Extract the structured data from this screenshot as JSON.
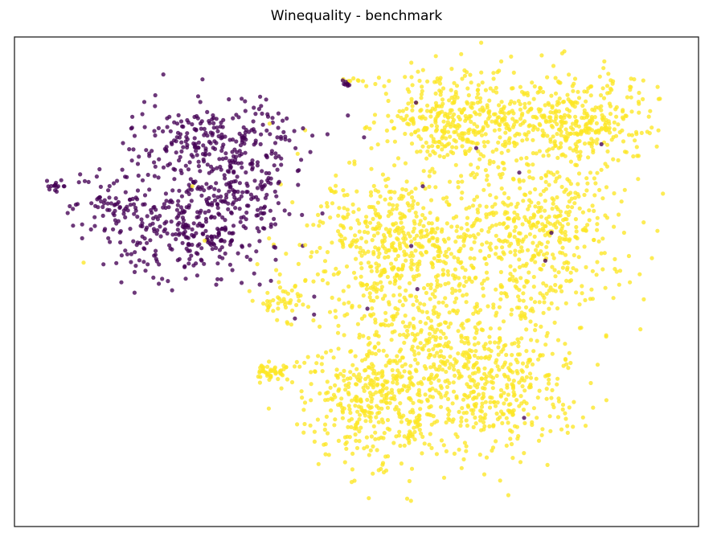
{
  "chart_data": {
    "type": "scatter",
    "title": "Winequality - benchmark",
    "xlabel": "",
    "ylabel": "",
    "xlim": [
      0,
      100
    ],
    "ylim": [
      0,
      100
    ],
    "grid": false,
    "legend": "none",
    "axes_ticks": "hidden",
    "series": [
      {
        "color": "#440154",
        "clusters": [
          {
            "center": [
              29,
              79
            ],
            "spread": [
              7,
              4
            ],
            "count": 260
          },
          {
            "center": [
              25,
              61
            ],
            "spread": [
              7,
              5
            ],
            "count": 330
          },
          {
            "center": [
              14,
              67
            ],
            "spread": [
              3,
              3
            ],
            "count": 50
          },
          {
            "center": [
              33,
              69
            ],
            "spread": [
              4,
              4
            ],
            "count": 110
          },
          {
            "center": [
              6,
              69.5
            ],
            "spread": [
              0.8,
              0.6
            ],
            "count": 16
          },
          {
            "center": [
              48.7,
              90.5
            ],
            "spread": [
              0.4,
              0.4
            ],
            "count": 8
          }
        ],
        "points": [
          [
            58.7,
            86.6
          ],
          [
            51.1,
            79.5
          ],
          [
            67.5,
            77.3
          ],
          [
            59.7,
            69.5
          ],
          [
            73.8,
            72.3
          ],
          [
            58.0,
            57.3
          ],
          [
            77.6,
            54.3
          ],
          [
            58.9,
            48.5
          ],
          [
            85.8,
            78.1
          ],
          [
            78.5,
            60.0
          ],
          [
            51.6,
            44.5
          ],
          [
            74.5,
            22.2
          ],
          [
            43.8,
            43.3
          ],
          [
            37.5,
            50.2
          ],
          [
            41.0,
            42.5
          ]
        ]
      },
      {
        "color": "#fde725",
        "clusters": [
          {
            "center": [
              66,
              83
            ],
            "spread": [
              6,
              5
            ],
            "count": 420
          },
          {
            "center": [
              83,
              83
            ],
            "spread": [
              5,
              5
            ],
            "count": 330
          },
          {
            "center": [
              57,
              58
            ],
            "spread": [
              7,
              8
            ],
            "count": 550
          },
          {
            "center": [
              77,
              60
            ],
            "spread": [
              6,
              8
            ],
            "count": 420
          },
          {
            "center": [
              52,
              25
            ],
            "spread": [
              5,
              6
            ],
            "count": 330
          },
          {
            "center": [
              69,
              27
            ],
            "spread": [
              7,
              7
            ],
            "count": 380
          },
          {
            "center": [
              62,
              38
            ],
            "spread": [
              8,
              8
            ],
            "count": 360
          },
          {
            "center": [
              39,
              46
            ],
            "spread": [
              2,
              2
            ],
            "count": 40
          },
          {
            "center": [
              37.7,
              31.6
            ],
            "spread": [
              1.5,
              0.9
            ],
            "count": 45
          },
          {
            "center": [
              49.5,
              90.9
            ],
            "spread": [
              0.8,
              0.4
            ],
            "count": 10
          }
        ],
        "points": [
          [
            61.6,
            96.1
          ],
          [
            65.3,
            96.5
          ],
          [
            72.6,
            96.0
          ],
          [
            94.8,
            68.0
          ],
          [
            94.0,
            60.4
          ],
          [
            92.0,
            46.4
          ],
          [
            91.5,
            40.3
          ],
          [
            86.5,
            38.8
          ],
          [
            71.0,
            9.4
          ],
          [
            72.2,
            6.4
          ],
          [
            57.4,
            5.7
          ],
          [
            51.8,
            5.8
          ],
          [
            35.5,
            53.6
          ],
          [
            42.5,
            57.5
          ],
          [
            37.3,
            82.3
          ],
          [
            26.0,
            69.5
          ],
          [
            10.1,
            53.9
          ],
          [
            27.8,
            58.4
          ],
          [
            38.8,
            51.5
          ],
          [
            41.0,
            49.0
          ]
        ]
      }
    ]
  }
}
